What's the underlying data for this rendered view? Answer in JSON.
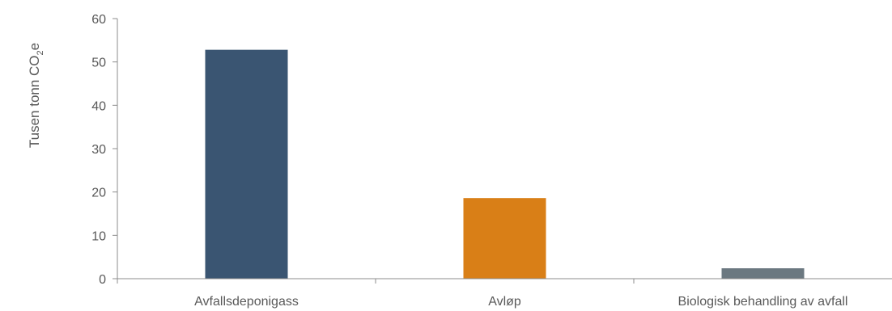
{
  "chart_data": {
    "type": "bar",
    "categories": [
      "Avfallsdeponigass",
      "Avløp",
      "Biologisk behandling av avfall"
    ],
    "values": [
      52.8,
      18.6,
      2.4
    ],
    "colors": [
      "#3a5572",
      "#d97f17",
      "#6b7880"
    ],
    "title": "",
    "xlabel": "",
    "ylabel": {
      "main": "Tusen tonn CO",
      "subscript": "2",
      "suffix": "e"
    },
    "ylim": [
      0,
      60
    ],
    "yticks": [
      "0",
      "10",
      "20",
      "30",
      "40",
      "50",
      "60"
    ],
    "grid": false,
    "legend": "none"
  }
}
